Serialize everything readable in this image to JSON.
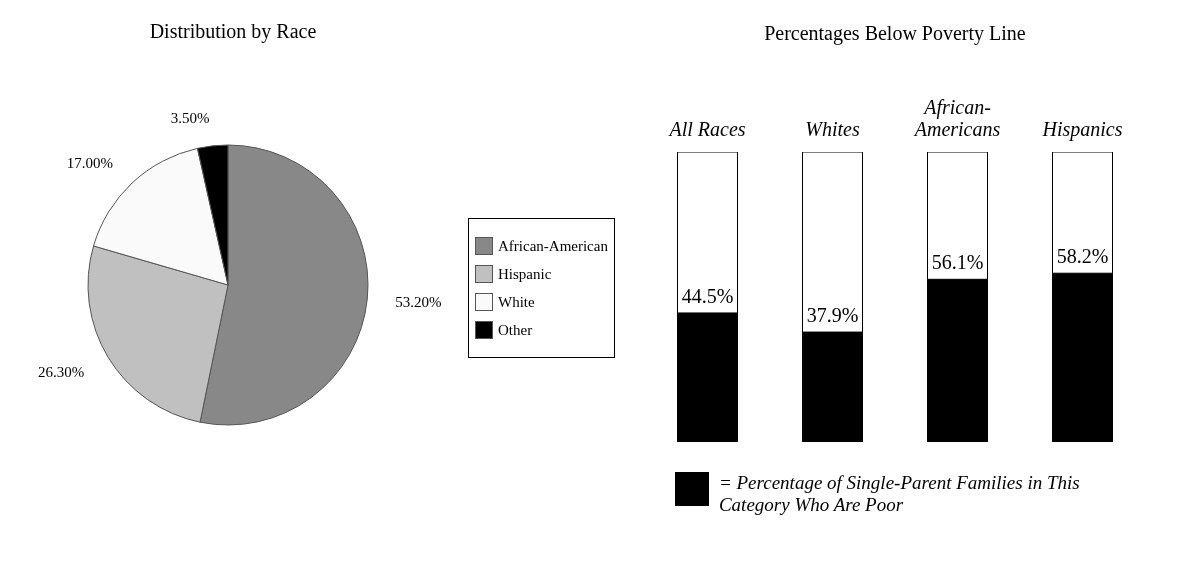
{
  "chart_data": [
    {
      "type": "pie",
      "title": "Distribution by Race",
      "categories": [
        "African-American",
        "Hispanic",
        "White",
        "Other"
      ],
      "values": [
        53.2,
        26.3,
        17.0,
        3.5
      ],
      "colors": [
        "#888888",
        "#c0c0c0",
        "#fafafa",
        "#000000"
      ],
      "value_labels": [
        "53.20%",
        "26.30%",
        "17.00%",
        "3.50%"
      ],
      "legend": "right"
    },
    {
      "type": "bar",
      "title": "Percentages Below Poverty Line",
      "categories": [
        "All Races",
        "Whites",
        "African-Americans",
        "Hispanics"
      ],
      "stacked": true,
      "ylim": [
        0,
        100
      ],
      "tick_labels": "x",
      "legend": "bottom",
      "series": [
        {
          "name": "= Percentage of Single-Parent Families in This Category Who Are Poor",
          "color": "#000000",
          "values": [
            44.5,
            37.9,
            56.1,
            58.2
          ],
          "value_labels": [
            "44.5%",
            "37.9%",
            "56.1%",
            "58.2%"
          ]
        },
        {
          "color": "#ffffff",
          "values": [
            55.5,
            62.1,
            43.9,
            41.8
          ]
        }
      ]
    }
  ]
}
